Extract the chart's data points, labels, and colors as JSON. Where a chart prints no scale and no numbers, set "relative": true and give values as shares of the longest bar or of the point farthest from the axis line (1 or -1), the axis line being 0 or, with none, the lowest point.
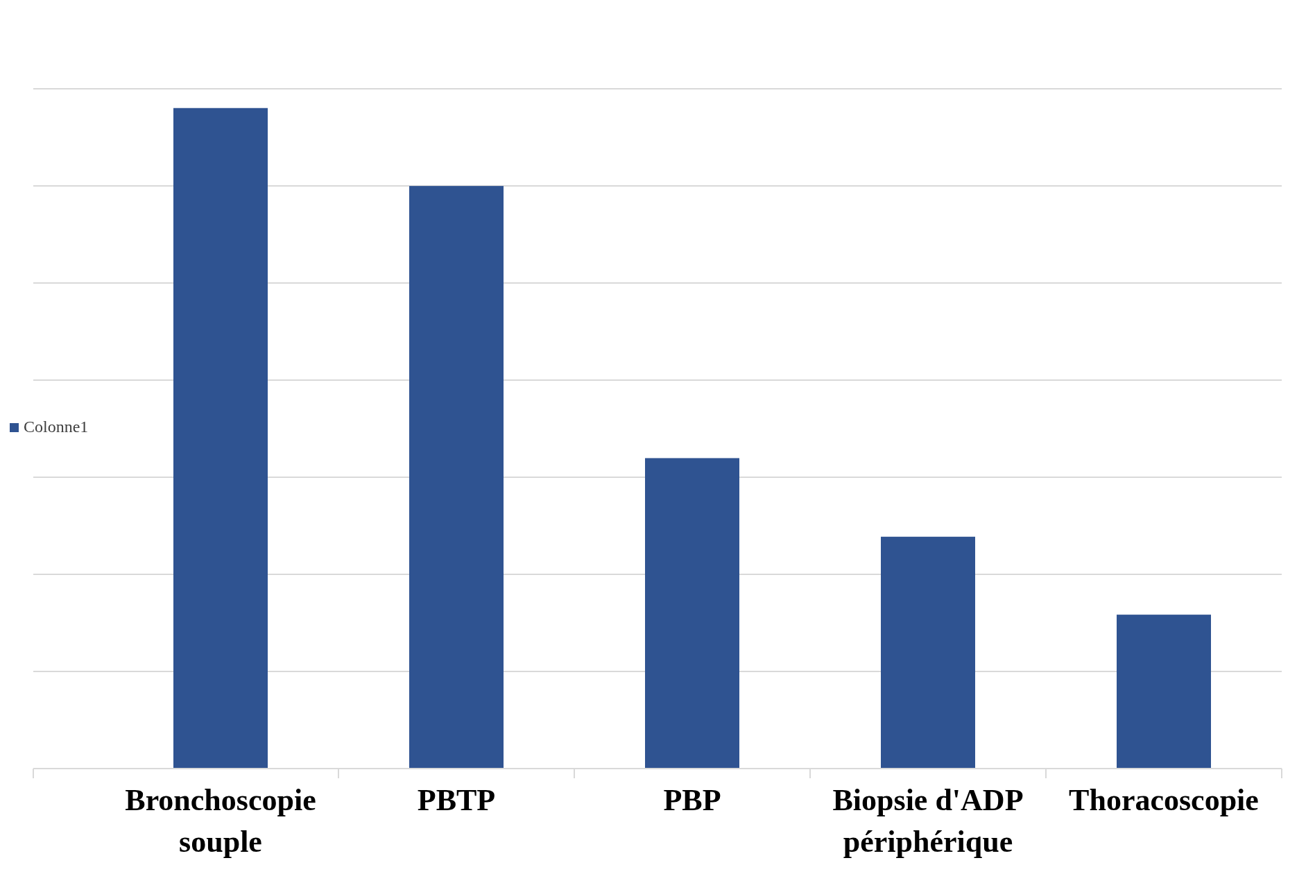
{
  "chart_data": {
    "type": "bar",
    "relative": true,
    "categories": [
      "Bronchoscopie souple",
      "PBTP",
      "PBP",
      "Biopsie d'ADP périphérique",
      "Thoracoscopie"
    ],
    "series": [
      {
        "name": "Colonne1",
        "color": "#2f5391",
        "values": [
          1,
          0.882,
          0.47,
          0.351,
          0.233
        ]
      }
    ],
    "grid": true,
    "legend": "left"
  }
}
